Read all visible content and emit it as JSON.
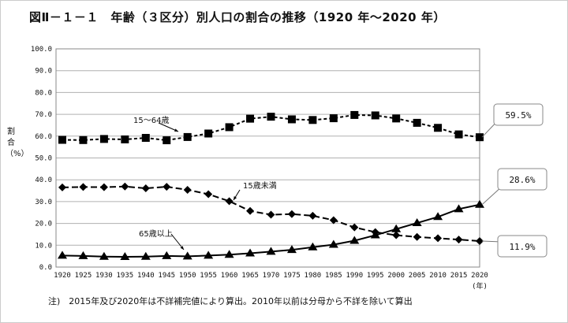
{
  "title": "図Ⅱ－１－１　年齢（３区分）別人口の割合の推移（1920 年～2020 年）",
  "note": "注)　2015年及び2020年は不詳補完値により算出。2010年以前は分母から不詳を除いて算出",
  "chart_data": {
    "type": "line",
    "title": "図Ⅱ－１－１　年齢（３区分）別人口の割合の推移（1920 年～2020 年）",
    "ylabel": "割合（%）",
    "xlabel": "(年)",
    "ylim": [
      0,
      100
    ],
    "yticks": [
      "0.0",
      "10.0",
      "20.0",
      "30.0",
      "40.0",
      "50.0",
      "60.0",
      "70.0",
      "80.0",
      "90.0",
      "100.0"
    ],
    "x": [
      "1920",
      "1925",
      "1930",
      "1935",
      "1940",
      "1945",
      "1950",
      "1955",
      "1960",
      "1965",
      "1970",
      "1975",
      "1980",
      "1985",
      "1990",
      "1995",
      "2000",
      "2005",
      "2010",
      "2015",
      "2020"
    ],
    "grid": true,
    "series": [
      {
        "name": "15～64歳",
        "marker": "square",
        "dash": "short",
        "values": [
          58.3,
          58.2,
          58.7,
          58.5,
          59.2,
          58.1,
          59.6,
          61.2,
          64.1,
          68.0,
          68.9,
          67.7,
          67.4,
          68.2,
          69.7,
          69.5,
          68.1,
          66.1,
          63.8,
          60.8,
          59.5
        ],
        "callout": "59.5%"
      },
      {
        "name": "15歳未満",
        "marker": "diamond",
        "dash": "long",
        "values": [
          36.5,
          36.7,
          36.6,
          36.9,
          36.1,
          36.8,
          35.4,
          33.4,
          30.2,
          25.7,
          24.0,
          24.3,
          23.5,
          21.5,
          18.2,
          16.0,
          14.6,
          13.8,
          13.2,
          12.6,
          11.9
        ],
        "callout": "11.9%"
      },
      {
        "name": "65歳以上",
        "marker": "triangle",
        "dash": "solid",
        "values": [
          5.3,
          5.1,
          4.8,
          4.7,
          4.8,
          5.1,
          4.9,
          5.3,
          5.7,
          6.3,
          7.1,
          7.9,
          9.1,
          10.3,
          12.1,
          14.6,
          17.4,
          20.2,
          23.0,
          26.6,
          28.6
        ],
        "callout": "28.6%"
      }
    ]
  }
}
